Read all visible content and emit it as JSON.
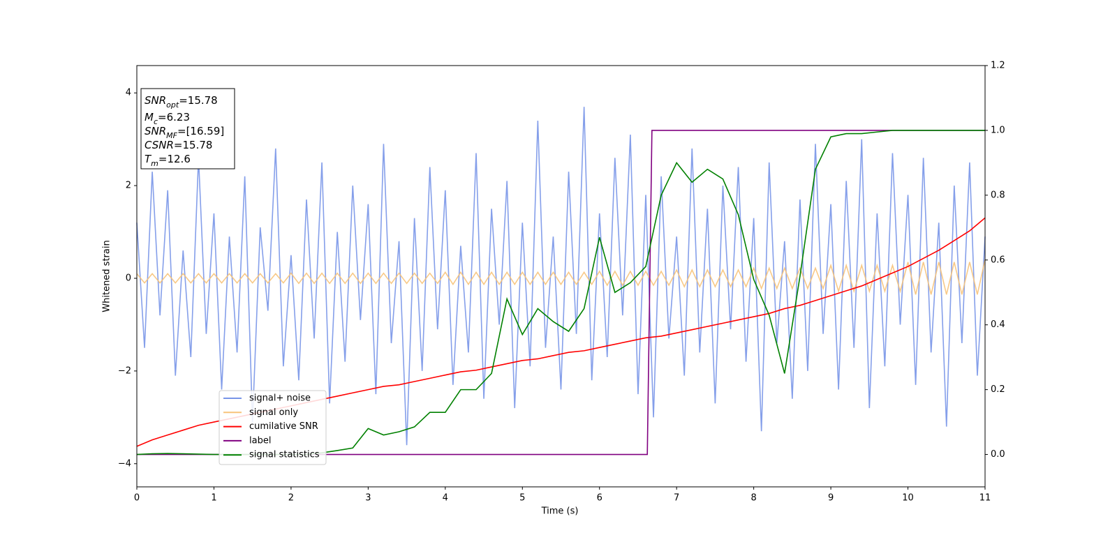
{
  "chart_data": {
    "type": "line",
    "xlabel": "Time (s)",
    "ylabel": "Whitened strain",
    "xlim": [
      0,
      11
    ],
    "ylim": [
      -4.5,
      4.59
    ],
    "y2lim": [
      -0.1,
      1.2
    ],
    "xticks": [
      0,
      1,
      2,
      3,
      4,
      5,
      6,
      7,
      8,
      9,
      10,
      11
    ],
    "yticks": [
      {
        "value": -4,
        "label": "−4"
      },
      {
        "value": -2,
        "label": "−2"
      },
      0,
      2,
      4
    ],
    "y2ticks": [
      {
        "value": 0,
        "label": "0.0"
      },
      0.2,
      0.4,
      0.6,
      0.8,
      {
        "value": 1,
        "label": "1.0"
      },
      1.2
    ],
    "grid": false,
    "legend": "lower left",
    "annotations": [
      {
        "base": "SNR",
        "sub": "opt",
        "rest": "=15.78"
      },
      {
        "base": "M",
        "sub": "c",
        "rest": "=6.23"
      },
      {
        "base": "SNR",
        "sub": "MF",
        "rest": "=[16.59]"
      },
      {
        "base": "CSNR",
        "sub": "",
        "rest": "=15.78"
      },
      {
        "base": "T",
        "sub": "m",
        "rest": "=12.6"
      }
    ],
    "x": [
      0,
      0.1,
      0.2,
      0.3,
      0.4,
      0.5,
      0.6,
      0.7,
      0.8,
      0.9,
      1,
      1.1,
      1.2,
      1.3,
      1.4,
      1.5,
      1.6,
      1.7,
      1.8,
      1.9,
      2,
      2.1,
      2.2,
      2.3,
      2.4,
      2.5,
      2.6,
      2.7,
      2.8,
      2.9,
      3,
      3.1,
      3.2,
      3.3,
      3.4,
      3.5,
      3.6,
      3.7,
      3.8,
      3.9,
      4,
      4.1,
      4.2,
      4.3,
      4.4,
      4.5,
      4.6,
      4.7,
      4.8,
      4.9,
      5,
      5.1,
      5.2,
      5.3,
      5.4,
      5.5,
      5.6,
      5.7,
      5.8,
      5.9,
      6,
      6.1,
      6.2,
      6.3,
      6.4,
      6.5,
      6.6,
      6.7,
      6.8,
      6.9,
      7,
      7.1,
      7.2,
      7.3,
      7.4,
      7.5,
      7.6,
      7.7,
      7.8,
      7.9,
      8,
      8.1,
      8.2,
      8.3,
      8.4,
      8.5,
      8.6,
      8.7,
      8.8,
      8.9,
      9,
      9.1,
      9.2,
      9.3,
      9.4,
      9.5,
      9.6,
      9.7,
      9.8,
      9.9,
      10,
      10.1,
      10.2,
      10.3,
      10.4,
      10.5,
      10.6,
      10.7,
      10.8,
      10.9,
      11
    ],
    "series": [
      {
        "name": "signal+ noise",
        "color": "#7895e8",
        "axis": "y",
        "values": [
          1.2,
          -1.5,
          2.3,
          -0.8,
          1.9,
          -2.1,
          0.6,
          -1.7,
          2.6,
          -1.2,
          1.4,
          -2.4,
          0.9,
          -1.6,
          2.2,
          -3.1,
          1.1,
          -0.7,
          2.8,
          -1.9,
          0.5,
          -2.2,
          1.7,
          -1.3,
          2.5,
          -2.7,
          1.0,
          -1.8,
          2.0,
          -0.9,
          1.6,
          -2.5,
          2.9,
          -1.4,
          0.8,
          -3.6,
          1.3,
          -2.0,
          2.4,
          -1.1,
          1.9,
          -2.3,
          0.7,
          -1.6,
          2.7,
          -2.6,
          1.5,
          -1.0,
          2.1,
          -2.8,
          1.2,
          -1.9,
          3.4,
          -1.5,
          0.9,
          -2.4,
          2.3,
          -1.2,
          3.7,
          -2.2,
          1.4,
          -1.7,
          2.6,
          -0.8,
          3.1,
          -2.5,
          1.8,
          -3.0,
          2.2,
          -1.3,
          0.9,
          -2.1,
          2.8,
          -1.6,
          1.5,
          -2.7,
          2.0,
          -1.1,
          2.4,
          -1.8,
          1.3,
          -3.3,
          2.5,
          -1.4,
          0.8,
          -2.6,
          1.7,
          -2.0,
          2.9,
          -1.2,
          1.6,
          -2.4,
          2.1,
          -1.5,
          3.0,
          -2.8,
          1.4,
          -1.9,
          2.7,
          -1.0,
          1.8,
          -2.3,
          2.6,
          -1.6,
          1.2,
          -3.2,
          2.0,
          -1.4,
          2.5,
          -2.1,
          0.9
        ]
      },
      {
        "name": "signal only",
        "color": "#f7c37a",
        "axis": "y",
        "values": [
          0.1,
          -0.1,
          0.1,
          -0.1,
          0.1,
          -0.1,
          0.1,
          -0.1,
          0.1,
          -0.1,
          0.1,
          -0.1,
          0.1,
          -0.1,
          0.1,
          -0.1,
          0.1,
          -0.1,
          0.1,
          -0.1,
          0.11,
          -0.11,
          0.11,
          -0.11,
          0.11,
          -0.11,
          0.11,
          -0.11,
          0.11,
          -0.11,
          0.11,
          -0.11,
          0.11,
          -0.11,
          0.11,
          -0.11,
          0.11,
          -0.11,
          0.11,
          -0.11,
          0.13,
          -0.13,
          0.13,
          -0.13,
          0.13,
          -0.13,
          0.13,
          -0.13,
          0.13,
          -0.13,
          0.13,
          -0.13,
          0.13,
          -0.13,
          0.13,
          -0.13,
          0.13,
          -0.13,
          0.13,
          -0.13,
          0.15,
          -0.15,
          0.15,
          -0.15,
          0.15,
          -0.15,
          0.15,
          -0.15,
          0.15,
          -0.15,
          0.18,
          -0.18,
          0.18,
          -0.18,
          0.18,
          -0.18,
          0.18,
          -0.18,
          0.18,
          -0.18,
          0.22,
          -0.22,
          0.22,
          -0.22,
          0.22,
          -0.22,
          0.22,
          -0.22,
          0.22,
          -0.22,
          0.28,
          -0.28,
          0.28,
          -0.28,
          0.28,
          -0.28,
          0.28,
          -0.28,
          0.28,
          -0.28,
          0.35,
          -0.35,
          0.35,
          -0.35,
          0.35,
          -0.35,
          0.35,
          -0.35,
          0.35,
          -0.35,
          0.4
        ]
      },
      {
        "name": "cumilative SNR",
        "color": "#ff0000",
        "axis": "y2",
        "x": [
          0,
          0.2,
          0.4,
          0.6,
          0.8,
          1,
          1.2,
          1.4,
          1.6,
          1.8,
          2,
          2.2,
          2.4,
          2.6,
          2.8,
          3,
          3.2,
          3.4,
          3.6,
          3.8,
          4,
          4.2,
          4.4,
          4.6,
          4.8,
          5,
          5.2,
          5.4,
          5.6,
          5.8,
          6,
          6.2,
          6.4,
          6.6,
          6.8,
          7,
          7.2,
          7.4,
          7.6,
          7.8,
          8,
          8.2,
          8.4,
          8.6,
          8.8,
          9,
          9.2,
          9.4,
          9.6,
          9.8,
          10,
          10.2,
          10.4,
          10.6,
          10.8,
          11
        ],
        "values": [
          0.025,
          0.045,
          0.06,
          0.075,
          0.09,
          0.1,
          0.11,
          0.12,
          0.13,
          0.14,
          0.15,
          0.16,
          0.17,
          0.18,
          0.19,
          0.2,
          0.21,
          0.215,
          0.225,
          0.235,
          0.245,
          0.255,
          0.26,
          0.27,
          0.28,
          0.29,
          0.295,
          0.305,
          0.315,
          0.32,
          0.33,
          0.34,
          0.35,
          0.36,
          0.365,
          0.375,
          0.385,
          0.395,
          0.405,
          0.415,
          0.425,
          0.435,
          0.45,
          0.46,
          0.475,
          0.49,
          0.505,
          0.52,
          0.54,
          0.56,
          0.58,
          0.605,
          0.63,
          0.66,
          0.69,
          0.73
        ]
      },
      {
        "name": "label",
        "color": "#800080",
        "axis": "y2",
        "x": [
          0,
          6.62,
          6.68,
          11
        ],
        "values": [
          0,
          0,
          1,
          1
        ]
      },
      {
        "name": "signal statistics",
        "color": "#008000",
        "axis": "y2",
        "x": [
          0,
          0.2,
          0.4,
          0.6,
          0.8,
          1,
          1.2,
          1.4,
          1.6,
          1.8,
          2,
          2.2,
          2.4,
          2.6,
          2.8,
          3,
          3.2,
          3.4,
          3.6,
          3.8,
          4,
          4.2,
          4.4,
          4.6,
          4.8,
          5,
          5.2,
          5.4,
          5.6,
          5.8,
          6,
          6.2,
          6.4,
          6.6,
          6.8,
          7,
          7.2,
          7.4,
          7.6,
          7.8,
          8,
          8.2,
          8.4,
          8.6,
          8.8,
          9,
          9.2,
          9.4,
          9.6,
          9.8,
          10,
          10.2,
          10.4,
          10.6,
          10.8,
          11
        ],
        "values": [
          0,
          0.002,
          0.003,
          0.002,
          0.001,
          0,
          0,
          0,
          0,
          0,
          0,
          0,
          0.005,
          0.012,
          0.02,
          0.08,
          0.06,
          0.07,
          0.085,
          0.13,
          0.13,
          0.2,
          0.2,
          0.25,
          0.48,
          0.37,
          0.45,
          0.41,
          0.38,
          0.45,
          0.67,
          0.5,
          0.53,
          0.58,
          0.8,
          0.9,
          0.84,
          0.88,
          0.85,
          0.74,
          0.54,
          0.43,
          0.25,
          0.55,
          0.88,
          0.98,
          0.99,
          0.99,
          0.995,
          1,
          1,
          1,
          1,
          1,
          1,
          1
        ]
      }
    ]
  }
}
